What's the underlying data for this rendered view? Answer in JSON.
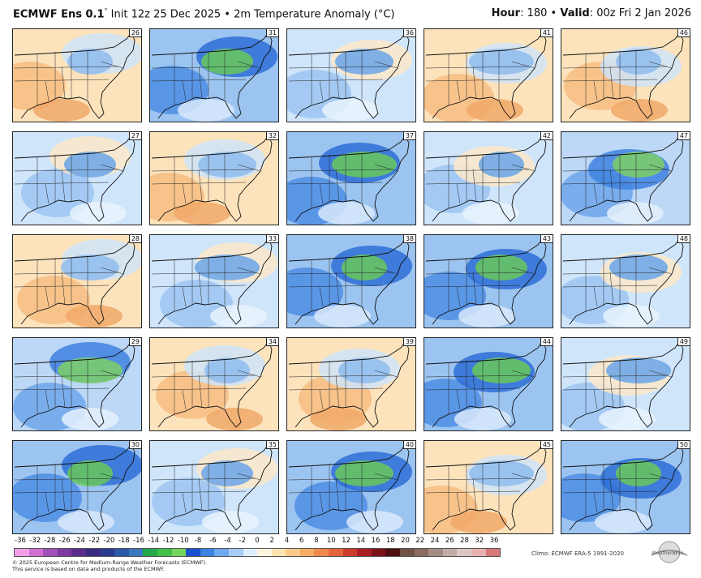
{
  "header": {
    "model": "ECMWF Ens 0.1",
    "degree": "°",
    "subtitle": "Init 12z 25 Dec 2025 • 2m Temperature Anomaly (°C)",
    "hour_label": "Hour",
    "hour_value": ": 180 • ",
    "valid_label": "Valid",
    "valid_value": ": 00z Fri 2 Jan 2026"
  },
  "panels": [
    {
      "member": "26",
      "theme": "warm"
    },
    {
      "member": "31",
      "theme": "cold"
    },
    {
      "member": "36",
      "theme": "mild"
    },
    {
      "member": "41",
      "theme": "warm"
    },
    {
      "member": "46",
      "theme": "warm"
    },
    {
      "member": "27",
      "theme": "mild"
    },
    {
      "member": "32",
      "theme": "warm"
    },
    {
      "member": "37",
      "theme": "cold"
    },
    {
      "member": "42",
      "theme": "mild"
    },
    {
      "member": "47",
      "theme": "mildcold"
    },
    {
      "member": "28",
      "theme": "warm"
    },
    {
      "member": "33",
      "theme": "mild"
    },
    {
      "member": "38",
      "theme": "cold"
    },
    {
      "member": "43",
      "theme": "cold"
    },
    {
      "member": "48",
      "theme": "mild"
    },
    {
      "member": "29",
      "theme": "mildcold"
    },
    {
      "member": "34",
      "theme": "warm"
    },
    {
      "member": "39",
      "theme": "warm"
    },
    {
      "member": "44",
      "theme": "cold"
    },
    {
      "member": "49",
      "theme": "mild"
    },
    {
      "member": "30",
      "theme": "cold"
    },
    {
      "member": "35",
      "theme": "mild"
    },
    {
      "member": "40",
      "theme": "cold"
    },
    {
      "member": "45",
      "theme": "warm"
    },
    {
      "member": "50",
      "theme": "cold"
    }
  ],
  "colorbar": {
    "ticks": [
      "-36",
      "-32",
      "-28",
      "-26",
      "-24",
      "-22",
      "-20",
      "-18",
      "-16",
      "-14",
      "-12",
      "-10",
      "-8",
      "-6",
      "-4",
      "-2",
      "0",
      "2",
      "4",
      "6",
      "8",
      "10",
      "12",
      "14",
      "16",
      "18",
      "20",
      "22",
      "24",
      "26",
      "28",
      "32",
      "36"
    ],
    "colors": [
      "#f2a0e6",
      "#d070d0",
      "#a050b8",
      "#7c3aa0",
      "#5a2d8c",
      "#3c2a82",
      "#2a3a8e",
      "#2c58a8",
      "#3c78c0",
      "#23a84a",
      "#41c04a",
      "#74d45c",
      "#1a50d0",
      "#3a84e0",
      "#6eaaf0",
      "#a8ccf6",
      "#dfeeff",
      "#fff4e0",
      "#fde3b0",
      "#fbc98a",
      "#f5ad66",
      "#ee8a4c",
      "#e2643a",
      "#cc3c2c",
      "#a81e22",
      "#7a1418",
      "#4c0e10",
      "#6e5346",
      "#8a6c60",
      "#a48c84",
      "#c2aca6",
      "#dcc6c2",
      "#e8b0b0",
      "#d87878"
    ]
  },
  "footer": {
    "copyright": "© 2025 European Centre for Medium-Range Weather Forecasts (ECMWF).",
    "service": "This service is based on data and products of the ECMWF.",
    "climo": "Climo: ECMWF ERA-5 1991-2020",
    "logo_text": "WeatherBELL"
  }
}
